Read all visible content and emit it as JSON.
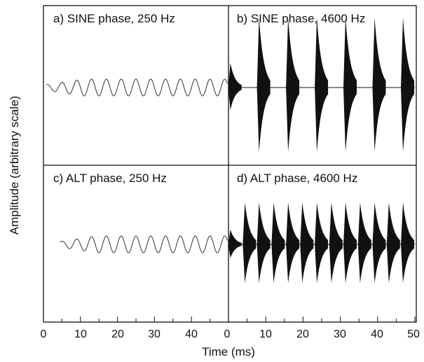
{
  "chart_data": {
    "type": "line",
    "ylabel": "Amplitude (arbitrary scale)",
    "xlabel": "Time (ms)",
    "x_ticks_left": [
      "0",
      "10",
      "20",
      "30",
      "40",
      "0"
    ],
    "x_ticks_right": [
      "10",
      "20",
      "30",
      "40",
      "50"
    ],
    "xlim": [
      0,
      50
    ],
    "grid": false,
    "panels": [
      {
        "id": "a",
        "title": "a) SINE phase, 250 Hz",
        "phase": "SINE",
        "center_frequency_hz": 250,
        "stimulus": "continuous",
        "carrier_period_ms": 4,
        "relative_peak_amplitude": 0.12
      },
      {
        "id": "b",
        "title": "b) SINE phase, 4600 Hz",
        "phase": "SINE",
        "center_frequency_hz": 4600,
        "stimulus": "pulse-train",
        "pulse_times_ms": [
          0.5,
          8.2,
          16,
          23.7,
          31.4,
          39.2,
          46.8
        ],
        "relative_peak_amplitude": 1.0
      },
      {
        "id": "c",
        "title": "c) ALT phase, 250 Hz",
        "phase": "ALT",
        "center_frequency_hz": 250,
        "stimulus": "continuous",
        "carrier_period_ms": 4,
        "relative_peak_amplitude": 0.12
      },
      {
        "id": "d",
        "title": "d) ALT phase, 4600 Hz",
        "phase": "ALT",
        "center_frequency_hz": 4600,
        "stimulus": "pulse-train",
        "pulse_times_ms": [
          0.5,
          4.4,
          8.2,
          12.1,
          16,
          19.8,
          23.7,
          27.6,
          31.4,
          35.3,
          39.2,
          43,
          46.8
        ],
        "relative_peak_amplitude": 0.6
      }
    ]
  }
}
